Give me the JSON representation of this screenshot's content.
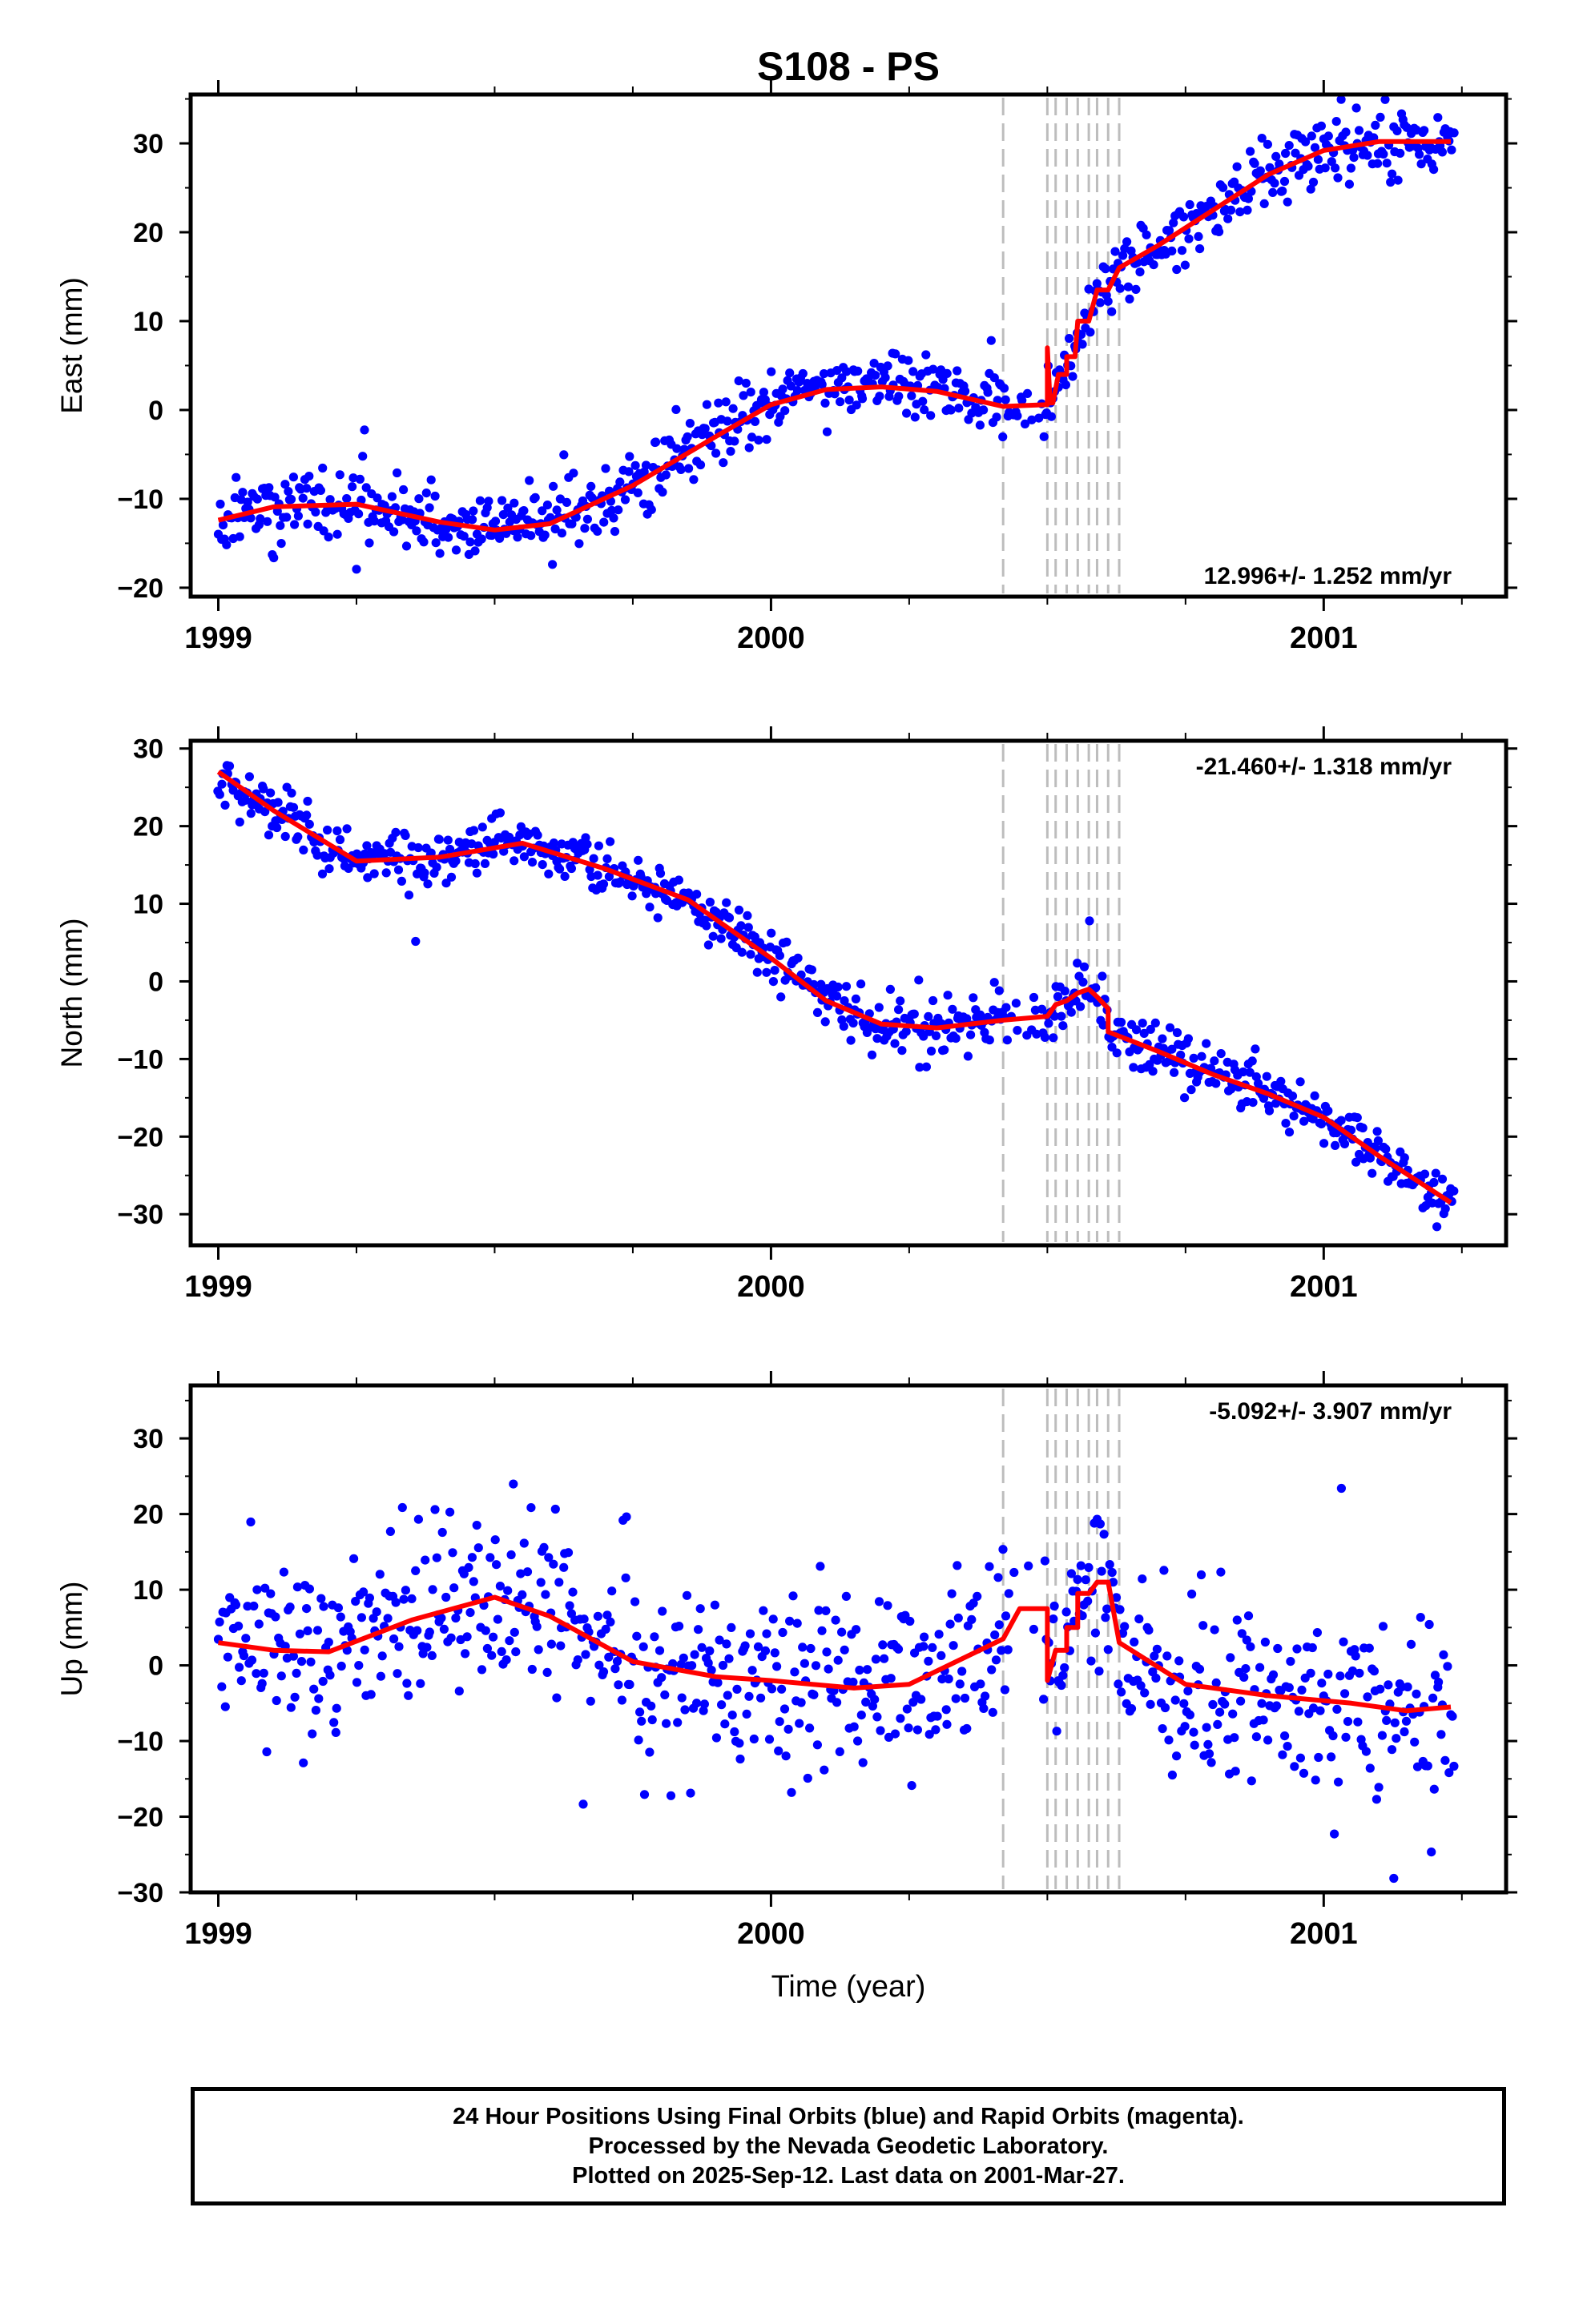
{
  "page": {
    "footer": {
      "line1": "24 Hour Positions Using Final Orbits (blue) and Rapid Orbits (magenta).",
      "line2": "Processed by the Nevada Geodetic Laboratory.",
      "line3": "Plotted on 2025-Sep-12. Last data on 2001-Mar-27."
    }
  },
  "chart_data": [
    {
      "type": "scatter",
      "title": "S108 - PS",
      "xlabel": "",
      "ylabel": "East (mm)",
      "xlim": [
        1998.95,
        2001.33
      ],
      "ylim": [
        -21,
        35.5
      ],
      "x_ticks": [
        1999,
        2000,
        2001
      ],
      "x_tick_labels": [
        "1999",
        "2000",
        "2001"
      ],
      "y_ticks": [
        -20,
        -10,
        0,
        10,
        20,
        30
      ],
      "y_tick_labels": [
        "−20",
        "−10",
        "0",
        "10",
        "20",
        "30"
      ],
      "annotation": "12.996+/- 1.252 mm/yr",
      "annotation_position": "bottom-right",
      "colors": {
        "points": "#0000ff",
        "model": "#ff0000",
        "events": "#bdbdbd"
      },
      "event_epochs": [
        2000.42,
        2000.5,
        2000.515,
        2000.535,
        2000.555,
        2000.575,
        2000.59,
        2000.61,
        2000.63
      ],
      "model_curve": [
        [
          1999.0,
          -12.4
        ],
        [
          1999.1,
          -10.9
        ],
        [
          1999.25,
          -10.6
        ],
        [
          1999.4,
          -12.6
        ],
        [
          1999.5,
          -13.5
        ],
        [
          1999.6,
          -12.8
        ],
        [
          1999.75,
          -8.5
        ],
        [
          1999.9,
          -3.0
        ],
        [
          2000.0,
          0.6
        ],
        [
          2000.1,
          2.3
        ],
        [
          2000.2,
          2.6
        ],
        [
          2000.3,
          2.1
        ],
        [
          2000.42,
          0.4
        ],
        [
          2000.5,
          0.6
        ],
        [
          2000.5,
          7.0
        ],
        [
          2000.505,
          0.8
        ],
        [
          2000.51,
          0.8
        ],
        [
          2000.52,
          4.0
        ],
        [
          2000.535,
          4.0
        ],
        [
          2000.535,
          6.0
        ],
        [
          2000.55,
          6.0
        ],
        [
          2000.555,
          10.0
        ],
        [
          2000.575,
          10.0
        ],
        [
          2000.59,
          13.5
        ],
        [
          2000.61,
          13.5
        ],
        [
          2000.63,
          16.0
        ],
        [
          2000.7,
          18.5
        ],
        [
          2000.8,
          22.5
        ],
        [
          2000.9,
          26.5
        ],
        [
          2001.0,
          29.2
        ],
        [
          2001.1,
          30.2
        ],
        [
          2001.23,
          30.2
        ]
      ],
      "points_seed": 11,
      "points_scatter": 1.8
    },
    {
      "type": "scatter",
      "xlabel": "",
      "ylabel": "North (mm)",
      "xlim": [
        1998.95,
        2001.33
      ],
      "ylim": [
        -34,
        31
      ],
      "x_ticks": [
        1999,
        2000,
        2001
      ],
      "x_tick_labels": [
        "1999",
        "2000",
        "2001"
      ],
      "y_ticks": [
        -30,
        -20,
        -10,
        0,
        10,
        20,
        30
      ],
      "y_tick_labels": [
        "−30",
        "−20",
        "−10",
        "0",
        "10",
        "20",
        "30"
      ],
      "annotation": "-21.460+/- 1.318 mm/yr",
      "annotation_position": "top-right",
      "colors": {
        "points": "#0000ff",
        "model": "#ff0000",
        "events": "#bdbdbd"
      },
      "event_epochs": [
        2000.42,
        2000.5,
        2000.515,
        2000.535,
        2000.555,
        2000.575,
        2000.59,
        2000.61,
        2000.63
      ],
      "model_curve": [
        [
          1999.0,
          27.0
        ],
        [
          1999.1,
          22.0
        ],
        [
          1999.25,
          15.5
        ],
        [
          1999.4,
          16.0
        ],
        [
          1999.55,
          17.8
        ],
        [
          1999.7,
          14.5
        ],
        [
          1999.85,
          10.5
        ],
        [
          2000.0,
          3.0
        ],
        [
          2000.1,
          -2.5
        ],
        [
          2000.2,
          -5.5
        ],
        [
          2000.3,
          -6.0
        ],
        [
          2000.42,
          -5.0
        ],
        [
          2000.5,
          -4.5
        ],
        [
          2000.515,
          -3.0
        ],
        [
          2000.535,
          -2.5
        ],
        [
          2000.555,
          -1.5
        ],
        [
          2000.575,
          -1.0
        ],
        [
          2000.59,
          -2.0
        ],
        [
          2000.61,
          -3.5
        ],
        [
          2000.61,
          -6.5
        ],
        [
          2000.7,
          -9.0
        ],
        [
          2000.8,
          -12.0
        ],
        [
          2000.9,
          -14.5
        ],
        [
          2001.0,
          -17.5
        ],
        [
          2001.1,
          -22.5
        ],
        [
          2001.23,
          -28.5
        ]
      ],
      "points_seed": 23,
      "points_scatter": 1.6
    },
    {
      "type": "scatter",
      "xlabel": "Time (year)",
      "ylabel": "Up (mm)",
      "xlim": [
        1998.95,
        2001.33
      ],
      "ylim": [
        -30,
        37
      ],
      "x_ticks": [
        1999,
        2000,
        2001
      ],
      "x_tick_labels": [
        "1999",
        "2000",
        "2001"
      ],
      "y_ticks": [
        -30,
        -20,
        -10,
        0,
        10,
        20,
        30
      ],
      "y_tick_labels": [
        "−30",
        "−20",
        "−10",
        "0",
        "10",
        "20",
        "30"
      ],
      "annotation": "-5.092+/- 3.907 mm/yr",
      "annotation_position": "top-right",
      "colors": {
        "points": "#0000ff",
        "model": "#ff0000",
        "events": "#bdbdbd"
      },
      "event_epochs": [
        2000.42,
        2000.5,
        2000.515,
        2000.535,
        2000.555,
        2000.575,
        2000.59,
        2000.61,
        2000.63
      ],
      "model_curve": [
        [
          1999.0,
          3.0
        ],
        [
          1999.1,
          2.0
        ],
        [
          1999.2,
          1.8
        ],
        [
          1999.35,
          6.0
        ],
        [
          1999.5,
          9.0
        ],
        [
          1999.6,
          6.5
        ],
        [
          1999.75,
          0.5
        ],
        [
          1999.9,
          -1.5
        ],
        [
          2000.0,
          -2.0
        ],
        [
          2000.15,
          -3.0
        ],
        [
          2000.25,
          -2.5
        ],
        [
          2000.42,
          3.5
        ],
        [
          2000.45,
          7.5
        ],
        [
          2000.5,
          7.5
        ],
        [
          2000.5,
          -2.0
        ],
        [
          2000.515,
          2.0
        ],
        [
          2000.535,
          2.0
        ],
        [
          2000.535,
          5.0
        ],
        [
          2000.555,
          5.0
        ],
        [
          2000.555,
          9.5
        ],
        [
          2000.575,
          9.5
        ],
        [
          2000.59,
          11.0
        ],
        [
          2000.61,
          11.0
        ],
        [
          2000.63,
          3.0
        ],
        [
          2000.75,
          -2.5
        ],
        [
          2000.9,
          -4.0
        ],
        [
          2001.05,
          -5.0
        ],
        [
          2001.15,
          -6.0
        ],
        [
          2001.23,
          -5.5
        ]
      ],
      "points_seed": 37,
      "points_scatter": 6.0
    }
  ]
}
